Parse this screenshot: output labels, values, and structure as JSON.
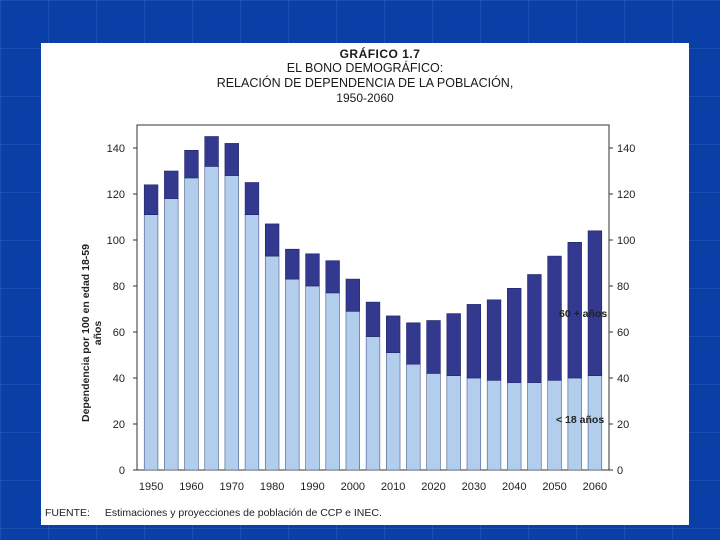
{
  "slide": {
    "titles": {
      "chart_number": "GRÁFICO 1.7",
      "line1": "EL BONO DEMOGRÁFICO:",
      "line2": "RELACIÓN DE DEPENDENCIA DE LA POBLACIÓN,",
      "line3": "1950-2060"
    },
    "ylabel": "Dependencia por 100 en edad 18-59 años",
    "legend": {
      "old": "60 + años",
      "young": "< 18 años"
    },
    "source": {
      "label": "FUENTE:",
      "text": "Estimaciones y proyecciones de población de CCP e INEC."
    },
    "colors": {
      "young": "#b3cdec",
      "old": "#33398f",
      "background": "#0a3fa8"
    }
  },
  "chart_data": {
    "type": "bar",
    "stacked": true,
    "title": "EL BONO DEMOGRÁFICO: RELACIÓN DE DEPENDENCIA DE LA POBLACIÓN, 1950-2060",
    "ylabel": "Dependencia por 100 en edad 18-59 años",
    "ylim": [
      0,
      150
    ],
    "yticks": [
      0,
      20,
      40,
      60,
      80,
      100,
      120,
      140
    ],
    "xtick_labels": [
      "1950",
      "1960",
      "1970",
      "1980",
      "1990",
      "2000",
      "2010",
      "2020",
      "2030",
      "2040",
      "2050",
      "2060"
    ],
    "categories": [
      "1950",
      "1955",
      "1960",
      "1965",
      "1970",
      "1975",
      "1980",
      "1985",
      "1990",
      "1995",
      "2000",
      "2005",
      "2010",
      "2015",
      "2020",
      "2025",
      "2030",
      "2035",
      "2040",
      "2045",
      "2050",
      "2055",
      "2060"
    ],
    "series": [
      {
        "name": "< 18 años",
        "values": [
          111,
          118,
          127,
          132,
          128,
          111,
          93,
          83,
          80,
          77,
          69,
          58,
          51,
          46,
          42,
          41,
          40,
          39,
          38,
          38,
          39,
          40,
          41
        ]
      },
      {
        "name": "60 + años",
        "values": [
          13,
          12,
          12,
          13,
          14,
          14,
          14,
          13,
          14,
          14,
          14,
          15,
          16,
          18,
          23,
          27,
          32,
          35,
          41,
          47,
          54,
          59,
          63
        ]
      }
    ],
    "totals": [
      124,
      130,
      139,
      145,
      142,
      125,
      107,
      96,
      94,
      91,
      83,
      73,
      67,
      64,
      65,
      68,
      72,
      74,
      79,
      85,
      93,
      99,
      104
    ]
  }
}
